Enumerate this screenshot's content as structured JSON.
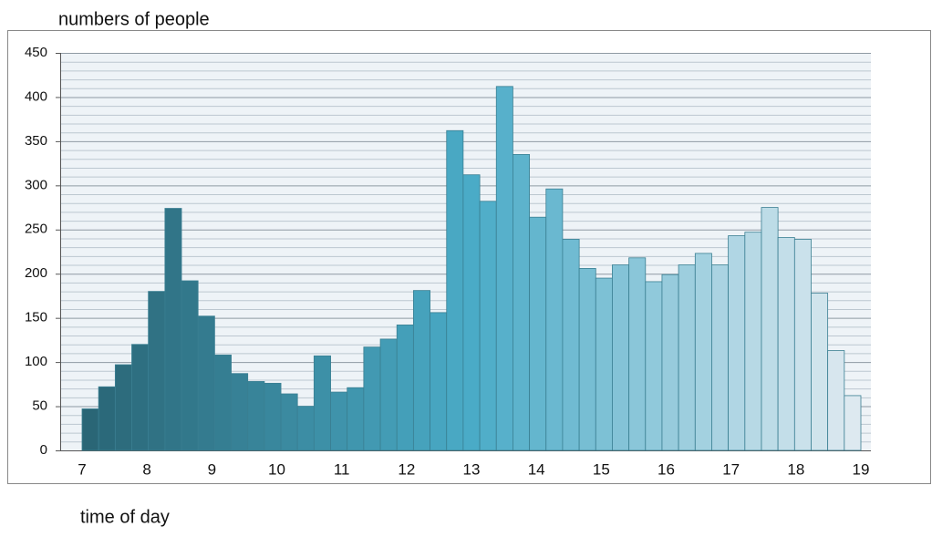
{
  "chart_data": {
    "type": "histogram",
    "y_label": "numbers of people",
    "x_label": "time of day",
    "bins": [
      7,
      7.255,
      7.511,
      7.766,
      8.021,
      8.277,
      8.532,
      8.787,
      9.043,
      9.298,
      9.553,
      9.809,
      10.064,
      10.319,
      10.574,
      10.83,
      11.085,
      11.34,
      11.596,
      11.851,
      12.106,
      12.362,
      12.617,
      12.872,
      13.128,
      13.383,
      13.638,
      13.894,
      14.149,
      14.404,
      14.66,
      14.915,
      15.17,
      15.426,
      15.681,
      15.936,
      16.191,
      16.447,
      16.702,
      16.957,
      17.213,
      17.468,
      17.723,
      17.979,
      18.234,
      18.489,
      18.745,
      19
    ],
    "values": [
      47,
      72,
      97,
      120,
      180,
      274,
      192,
      152,
      108,
      87,
      78,
      76,
      64,
      50,
      107,
      66,
      71,
      117,
      126,
      142,
      181,
      156,
      362,
      312,
      282,
      412,
      335,
      264,
      296,
      239,
      206,
      195,
      210,
      218,
      191,
      199,
      210,
      223,
      210,
      243,
      247,
      275,
      241,
      239,
      178,
      113,
      62
    ],
    "gradient": [
      "#2a6676",
      "#4aabc7",
      "#dde9f0"
    ],
    "xlim": [
      7,
      19
    ],
    "xticks": [
      7,
      8,
      9,
      10,
      11,
      12,
      13,
      14,
      15,
      16,
      17,
      18,
      19
    ],
    "ylim": [
      0,
      450
    ],
    "yticks": [
      0,
      50,
      100,
      150,
      200,
      250,
      300,
      350,
      400,
      450
    ],
    "yticks_minor": [
      10,
      20,
      30,
      40,
      60,
      70,
      80,
      90,
      110,
      120,
      130,
      140,
      160,
      170,
      180,
      190,
      210,
      220,
      230,
      240,
      260,
      270,
      280,
      290,
      310,
      320,
      330,
      340,
      360,
      370,
      380,
      390,
      410,
      420,
      430,
      440
    ],
    "grid": true
  }
}
